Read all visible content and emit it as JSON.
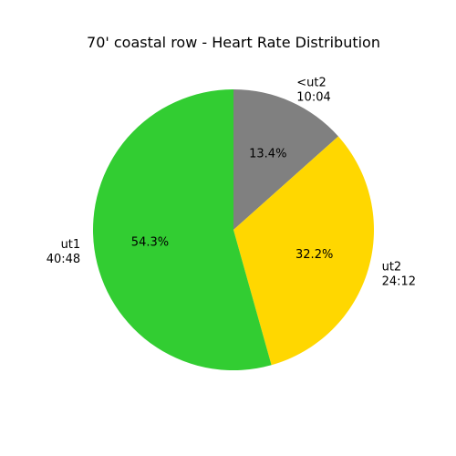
{
  "chart_data": {
    "type": "pie",
    "title": "70' coastal row - Heart Rate Distribution",
    "slices": [
      {
        "label": "<ut2",
        "duration": "10:04",
        "value": 13.4,
        "value_label": "13.4%",
        "color": "#808080"
      },
      {
        "label": "ut2",
        "duration": "24:12",
        "value": 32.2,
        "value_label": "32.2%",
        "color": "#ffd700"
      },
      {
        "label": "ut1",
        "duration": "40:48",
        "value": 54.3,
        "value_label": "54.3%",
        "color": "#32cd32"
      }
    ],
    "start_angle_deg": 90,
    "direction": "clockwise"
  }
}
